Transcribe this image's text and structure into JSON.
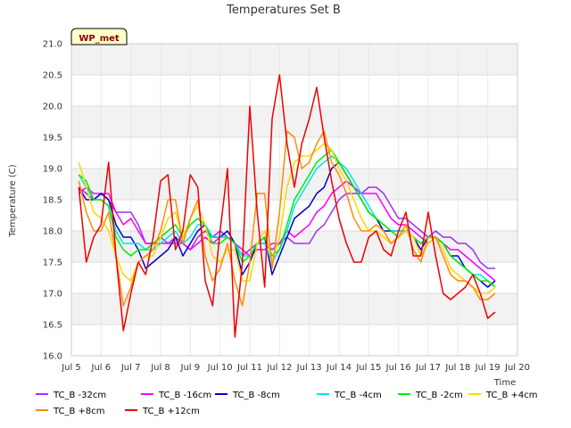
{
  "chart_data": {
    "type": "line",
    "title": "Temperatures Set B",
    "xlabel": "Time",
    "ylabel": "Temperature (C)",
    "badge": "WP_met",
    "x_ticks": [
      "Jul 5",
      "Jul 6",
      "Jul 7",
      "Jul 8",
      "Jul 9",
      "Jul 10",
      "Jul 11",
      "Jul 12",
      "Jul 13",
      "Jul 14",
      "Jul 15",
      "Jul 16",
      "Jul 17",
      "Jul 18",
      "Jul 19",
      "Jul 20"
    ],
    "y_ticks": [
      "16.0",
      "16.5",
      "17.0",
      "17.5",
      "18.0",
      "18.5",
      "19.0",
      "19.5",
      "20.0",
      "20.5",
      "21.0"
    ],
    "xlim": [
      5,
      20
    ],
    "ylim": [
      16.0,
      21.0
    ],
    "band_color": "#f2f2f2",
    "grid": true,
    "legend_position": "bottom",
    "x": [
      5.25,
      5.5,
      5.75,
      6.0,
      6.25,
      6.5,
      6.75,
      7.0,
      7.25,
      7.5,
      7.75,
      8.0,
      8.25,
      8.5,
      8.75,
      9.0,
      9.25,
      9.5,
      9.75,
      10.0,
      10.25,
      10.5,
      10.75,
      11.0,
      11.25,
      11.5,
      11.75,
      12.0,
      12.25,
      12.5,
      12.75,
      13.0,
      13.25,
      13.5,
      13.75,
      14.0,
      14.25,
      14.5,
      14.75,
      15.0,
      15.25,
      15.5,
      15.75,
      16.0,
      16.25,
      16.5,
      16.75,
      17.0,
      17.25,
      17.5,
      17.75,
      18.0,
      18.25,
      18.5,
      18.75,
      19.0,
      19.25
    ],
    "series": [
      {
        "name": "TC_B -32cm",
        "color": "#9b30ff",
        "values": [
          18.7,
          18.6,
          18.5,
          18.6,
          18.5,
          18.3,
          18.3,
          18.3,
          18.1,
          17.8,
          17.8,
          17.9,
          17.8,
          17.9,
          17.8,
          17.7,
          17.9,
          18.0,
          17.9,
          18.0,
          17.9,
          17.8,
          17.6,
          17.7,
          17.8,
          17.8,
          17.7,
          17.8,
          17.9,
          17.8,
          17.8,
          17.8,
          18.0,
          18.1,
          18.3,
          18.5,
          18.6,
          18.6,
          18.6,
          18.7,
          18.7,
          18.6,
          18.4,
          18.2,
          18.2,
          18.1,
          18.0,
          17.9,
          18.0,
          17.9,
          17.9,
          17.8,
          17.8,
          17.7,
          17.5,
          17.4,
          17.4
        ]
      },
      {
        "name": "TC_B -16cm",
        "color": "#ff00ff",
        "values": [
          18.6,
          18.7,
          18.6,
          18.6,
          18.6,
          18.3,
          18.1,
          18.2,
          18.0,
          17.8,
          17.8,
          17.8,
          17.8,
          17.8,
          17.8,
          17.7,
          17.8,
          17.9,
          17.8,
          17.9,
          17.9,
          17.8,
          17.7,
          17.6,
          17.7,
          17.7,
          17.8,
          17.8,
          18.0,
          17.9,
          18.0,
          18.1,
          18.3,
          18.4,
          18.6,
          18.7,
          18.8,
          18.7,
          18.6,
          18.6,
          18.6,
          18.4,
          18.2,
          18.1,
          18.1,
          18.0,
          17.9,
          17.8,
          17.9,
          17.8,
          17.7,
          17.7,
          17.6,
          17.5,
          17.4,
          17.3,
          17.2
        ]
      },
      {
        "name": "TC_B -8cm",
        "color": "#0000cd",
        "values": [
          18.7,
          18.5,
          18.5,
          18.6,
          18.5,
          18.1,
          17.9,
          17.9,
          17.7,
          17.4,
          17.5,
          17.6,
          17.7,
          17.9,
          17.6,
          17.8,
          18.0,
          18.1,
          17.9,
          17.9,
          18.0,
          17.8,
          17.3,
          17.5,
          17.8,
          17.9,
          17.3,
          17.6,
          17.9,
          18.2,
          18.3,
          18.4,
          18.6,
          18.7,
          19.0,
          19.1,
          18.9,
          18.7,
          18.5,
          18.3,
          18.2,
          18.0,
          18.0,
          18.0,
          18.0,
          17.9,
          17.7,
          17.9,
          17.9,
          17.8,
          17.6,
          17.6,
          17.4,
          17.3,
          17.2,
          17.1,
          17.2
        ]
      },
      {
        "name": "TC_B -4cm",
        "color": "#00e5ee",
        "values": [
          18.9,
          18.7,
          18.5,
          18.5,
          18.4,
          18.0,
          17.8,
          17.8,
          17.8,
          17.7,
          17.7,
          17.8,
          17.9,
          18.0,
          17.8,
          17.9,
          18.1,
          18.1,
          17.9,
          17.9,
          17.9,
          17.8,
          17.6,
          17.6,
          17.8,
          17.8,
          17.5,
          17.7,
          18.0,
          18.4,
          18.6,
          18.8,
          19.0,
          19.1,
          19.2,
          19.1,
          19.0,
          18.8,
          18.6,
          18.4,
          18.2,
          18.1,
          18.0,
          18.0,
          18.0,
          17.9,
          17.8,
          17.9,
          17.9,
          17.8,
          17.6,
          17.5,
          17.4,
          17.3,
          17.3,
          17.2,
          17.1
        ]
      },
      {
        "name": "TC_B -2cm",
        "color": "#00ee00",
        "values": [
          18.9,
          18.8,
          18.5,
          18.5,
          18.4,
          17.9,
          17.7,
          17.6,
          17.7,
          17.7,
          17.8,
          17.9,
          18.0,
          18.1,
          17.9,
          18.1,
          18.2,
          18.1,
          17.8,
          17.8,
          17.9,
          17.8,
          17.5,
          17.6,
          17.8,
          17.9,
          17.6,
          17.7,
          18.1,
          18.5,
          18.7,
          18.9,
          19.1,
          19.2,
          19.3,
          19.1,
          18.9,
          18.7,
          18.5,
          18.3,
          18.2,
          18.1,
          18.0,
          17.9,
          18.0,
          17.9,
          17.8,
          17.9,
          17.9,
          17.8,
          17.6,
          17.5,
          17.4,
          17.3,
          17.2,
          17.2,
          17.1
        ]
      },
      {
        "name": "TC_B +4cm",
        "color": "#ffd700",
        "values": [
          19.1,
          18.7,
          18.3,
          18.2,
          18.0,
          17.6,
          17.3,
          17.2,
          17.5,
          17.6,
          17.6,
          17.9,
          18.2,
          18.3,
          17.9,
          18.2,
          18.4,
          18.1,
          17.6,
          17.5,
          17.7,
          17.7,
          17.2,
          17.2,
          17.8,
          18.0,
          17.5,
          17.9,
          18.7,
          19.1,
          19.2,
          19.2,
          19.3,
          19.4,
          19.3,
          19.0,
          18.8,
          18.5,
          18.2,
          18.0,
          18.0,
          17.9,
          17.8,
          17.9,
          18.0,
          17.9,
          17.6,
          17.8,
          17.9,
          17.7,
          17.4,
          17.3,
          17.2,
          17.1,
          17.0,
          17.0,
          17.1
        ]
      },
      {
        "name": "TC_B +8cm",
        "color": "#ff8c00",
        "values": [
          18.8,
          18.3,
          18.0,
          18.0,
          18.3,
          17.6,
          16.8,
          17.1,
          17.5,
          17.6,
          17.7,
          18.0,
          18.5,
          18.5,
          17.8,
          18.2,
          18.5,
          17.6,
          17.2,
          17.4,
          17.8,
          17.2,
          16.8,
          17.5,
          18.6,
          18.6,
          17.4,
          18.3,
          19.6,
          19.5,
          19.0,
          19.1,
          19.4,
          19.6,
          19.1,
          18.9,
          18.6,
          18.2,
          18.0,
          18.0,
          18.1,
          18.0,
          17.8,
          17.9,
          18.1,
          17.7,
          17.5,
          17.9,
          17.9,
          17.6,
          17.3,
          17.2,
          17.2,
          17.1,
          16.9,
          16.9,
          17.0
        ]
      },
      {
        "name": "TC_B +12cm",
        "color": "#ee0000",
        "values": [
          18.7,
          17.5,
          17.9,
          18.1,
          19.1,
          17.6,
          16.4,
          17.0,
          17.5,
          17.3,
          17.9,
          18.8,
          18.9,
          17.7,
          18.0,
          18.9,
          18.7,
          17.2,
          16.8,
          18.0,
          19.0,
          16.3,
          17.5,
          20.0,
          18.3,
          17.1,
          19.8,
          20.5,
          19.4,
          18.7,
          19.4,
          19.8,
          20.3,
          19.5,
          18.8,
          18.2,
          17.8,
          17.5,
          17.5,
          17.9,
          18.0,
          17.7,
          17.6,
          18.0,
          18.3,
          17.6,
          17.6,
          18.3,
          17.6,
          17.0,
          16.9,
          17.0,
          17.1,
          17.3,
          17.0,
          16.6,
          16.7
        ]
      }
    ]
  }
}
